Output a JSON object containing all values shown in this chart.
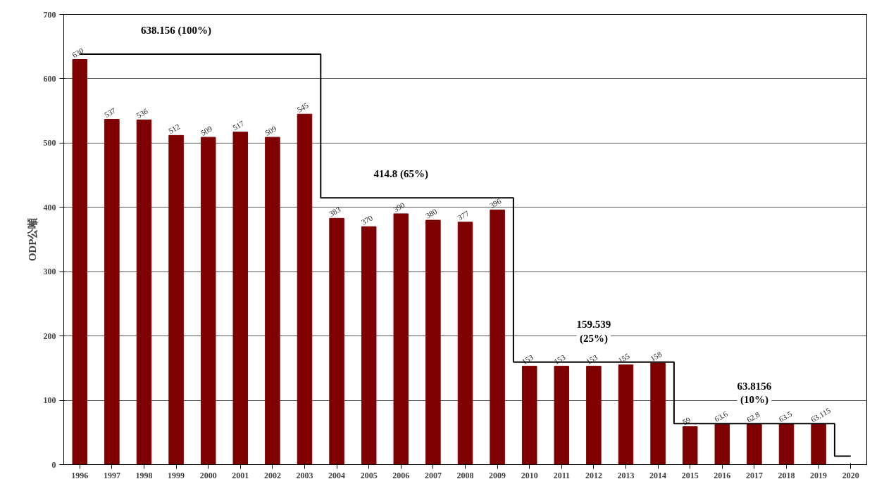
{
  "chart_data": {
    "type": "bar",
    "ylabel": "ODP公噸",
    "categories": [
      "1996",
      "1997",
      "1998",
      "1999",
      "2000",
      "2001",
      "2002",
      "2003",
      "2004",
      "2005",
      "2006",
      "2007",
      "2008",
      "2009",
      "2010",
      "2011",
      "2012",
      "2013",
      "2014",
      "2015",
      "2016",
      "2017",
      "2018",
      "2019",
      "2020"
    ],
    "series": [
      {
        "color": "#7f0000",
        "values": [
          630,
          537,
          536,
          512,
          509,
          517,
          509,
          545,
          383,
          370,
          390,
          380,
          377,
          396,
          153,
          153,
          153,
          155,
          158,
          59,
          63.6,
          62.8,
          63.5,
          63.115,
          null
        ],
        "value_labels": [
          "630",
          "537",
          "536",
          "512",
          "509",
          "517",
          "509",
          "545",
          "383",
          "370",
          "390",
          "380",
          "377",
          "396",
          "153",
          "153",
          "153",
          "155",
          "158",
          "59",
          "63.6",
          "62.8",
          "63.5",
          "63.115",
          null
        ]
      },
      {
        "type": "step",
        "color": "#000000",
        "values": [
          638.156,
          638.156,
          638.156,
          638.156,
          638.156,
          638.156,
          638.156,
          638.156,
          414.8,
          414.8,
          414.8,
          414.8,
          414.8,
          414.8,
          159.539,
          159.539,
          159.539,
          159.539,
          159.539,
          63.8156,
          63.8156,
          63.8156,
          63.8156,
          63.8156,
          13
        ]
      }
    ],
    "annotations": [
      {
        "text": "638.156 (100%)",
        "x": "1999",
        "y": 638.156
      },
      {
        "text": "414.8 (65%)",
        "x": "2006",
        "y": 414.8
      },
      {
        "text": "159.539\n(25%)",
        "x": "2012",
        "y": 159.539
      },
      {
        "text": "63.8156\n(10%)",
        "x": "2017",
        "y": 63.8156
      }
    ],
    "ylim": [
      0,
      700
    ],
    "yticks": [
      0,
      100,
      200,
      300,
      400,
      500,
      600,
      700
    ],
    "grid": "y"
  }
}
